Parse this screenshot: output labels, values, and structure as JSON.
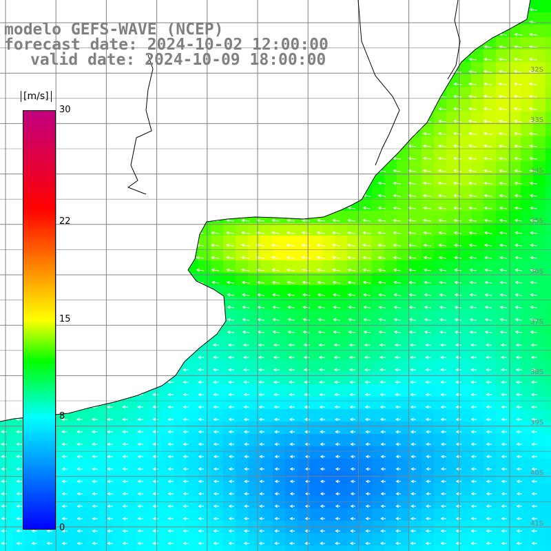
{
  "titles": {
    "model": "modelo GEFS-WAVE (NCEP)",
    "forecast": "forecast date: 2024-10-02 12:00:00",
    "valid": "valid date: 2024-10-09 18:00:00"
  },
  "colorbar": {
    "unit": "[m/s]",
    "ticks": [
      {
        "value": 30,
        "label": "30"
      },
      {
        "value": 22,
        "label": "22"
      },
      {
        "value": 15,
        "label": "15"
      },
      {
        "value": 8,
        "label": "8"
      },
      {
        "value": 0,
        "label": "0"
      }
    ],
    "range": [
      0,
      30
    ],
    "stops": [
      {
        "value": 0,
        "color": "#0000ff"
      },
      {
        "value": 4,
        "color": "#0080ff"
      },
      {
        "value": 8,
        "color": "#00ffff"
      },
      {
        "value": 12,
        "color": "#00ff00"
      },
      {
        "value": 15,
        "color": "#ffff00"
      },
      {
        "value": 19,
        "color": "#ff8000"
      },
      {
        "value": 23,
        "color": "#ff0000"
      },
      {
        "value": 30,
        "color": "#c00080"
      }
    ]
  },
  "lat_labels": [
    "32S",
    "33S",
    "34S",
    "35S",
    "36S",
    "37S",
    "38S",
    "39S",
    "40S",
    "41S"
  ],
  "map_colors": {
    "land": "#ffffff",
    "grid": "#808080",
    "coast": "#000000",
    "arrow": "#ffffff"
  }
}
